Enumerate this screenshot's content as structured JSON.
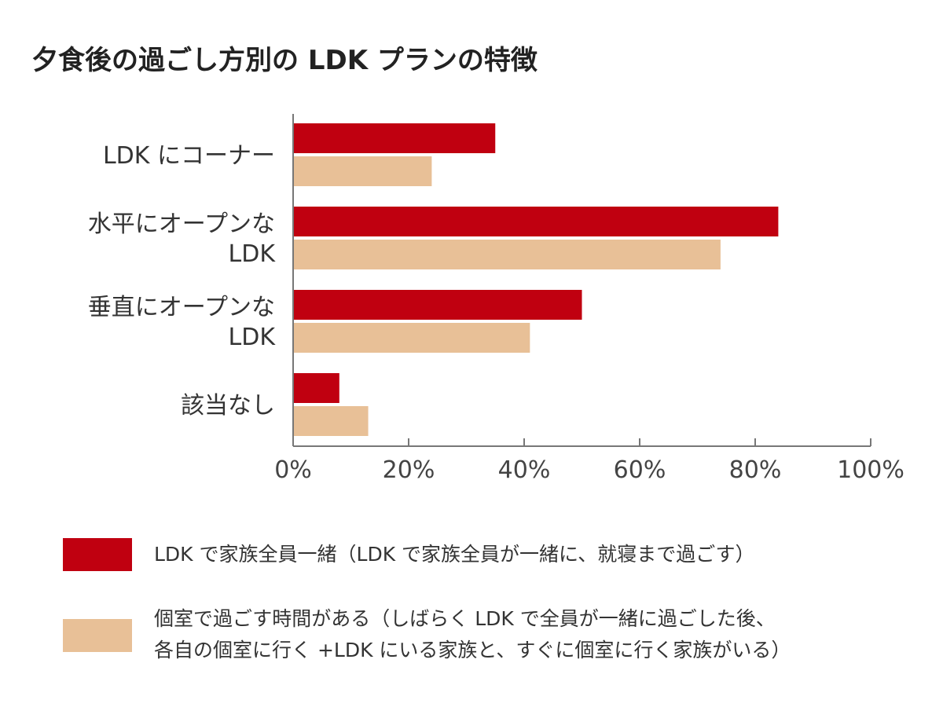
{
  "chart_data": {
    "type": "bar",
    "orientation": "horizontal",
    "title": "夕食後の過ごし方別の LDK プランの特徴",
    "categories": [
      [
        "LDK にコーナー"
      ],
      [
        "水平にオープンな",
        "LDK"
      ],
      [
        "垂直にオープンな",
        "LDK"
      ],
      [
        "該当なし"
      ]
    ],
    "series": [
      {
        "name": [
          "LDK で家族全員一緒（LDK で家族全員が一緒に、就寝まで過ごす）"
        ],
        "color": "#c00010",
        "values": [
          35,
          84,
          50,
          8
        ]
      },
      {
        "name": [
          "個室で過ごす時間がある（しばらく LDK で全員が一緒に過ごした後、",
          "各自の個室に行く +LDK にいる家族と、すぐに個室に行く家族がいる）"
        ],
        "color": "#e8c097",
        "values": [
          24,
          74,
          41,
          13
        ]
      }
    ],
    "xlim": [
      0,
      100
    ],
    "xticks": [
      "0%",
      "20%",
      "40%",
      "60%",
      "80%",
      "100%"
    ],
    "grid": false,
    "legend_position": "bottom"
  }
}
